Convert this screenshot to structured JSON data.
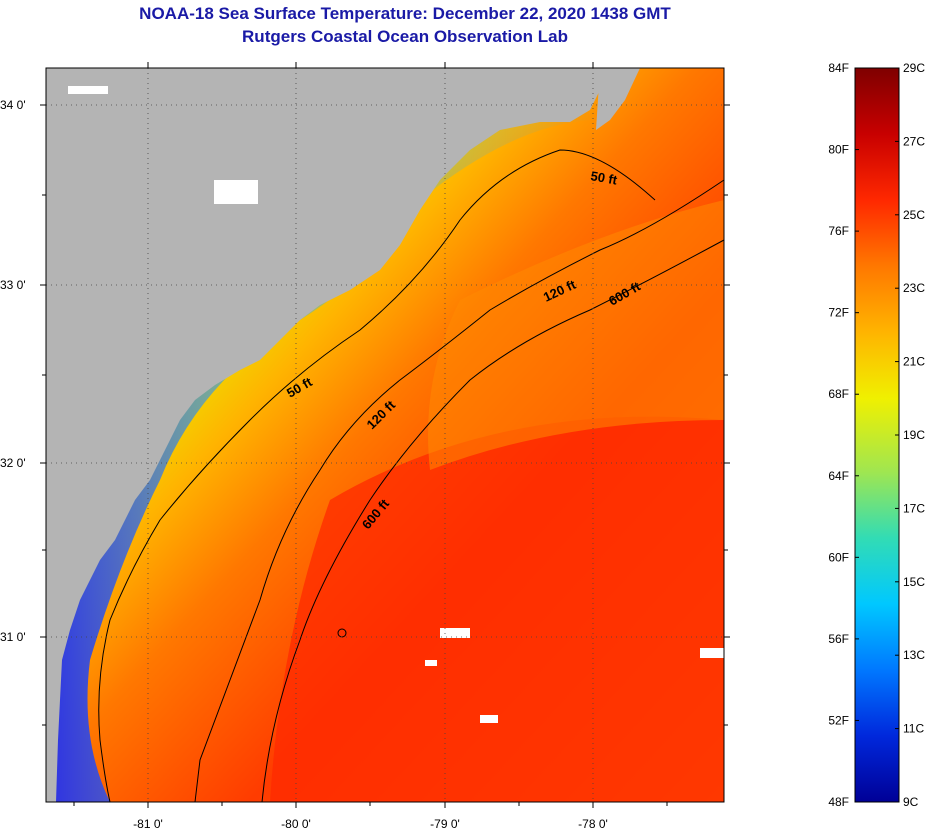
{
  "header": {
    "title": "NOAA-18 Sea Surface Temperature:  December 22, 2020 1438 GMT",
    "subtitle": "Rutgers Coastal Ocean Observation Lab"
  },
  "map": {
    "lat_labels": [
      "34 0'",
      "33 0'",
      "32 0'",
      "31 0'"
    ],
    "lon_labels": [
      "-81 0'",
      "-80 0'",
      "-79 0'",
      "-78 0'"
    ],
    "contours": {
      "fifty_labels": [
        "50 ft",
        "50 ft"
      ],
      "onetwenty_labels": [
        "120 ft",
        "120 ft"
      ],
      "sixhundred_labels": [
        "600 ft",
        "600 ft"
      ]
    },
    "colors": {
      "land": "#b4b4b4",
      "contour": "#000000"
    }
  },
  "colorbar": {
    "f_labels": [
      "84F",
      "80F",
      "76F",
      "72F",
      "68F",
      "64F",
      "60F",
      "56F",
      "52F",
      "48F"
    ],
    "c_labels": [
      "29C",
      "27C",
      "25C",
      "23C",
      "21C",
      "19C",
      "17C",
      "15C",
      "13C",
      "11C",
      "9C"
    ],
    "gradient": [
      "#7f0000",
      "#c80000",
      "#ff2800",
      "#ff7800",
      "#ffb400",
      "#f0f000",
      "#a0e650",
      "#32dcb4",
      "#00c8ff",
      "#0078ff",
      "#0028dc",
      "#000096"
    ]
  }
}
